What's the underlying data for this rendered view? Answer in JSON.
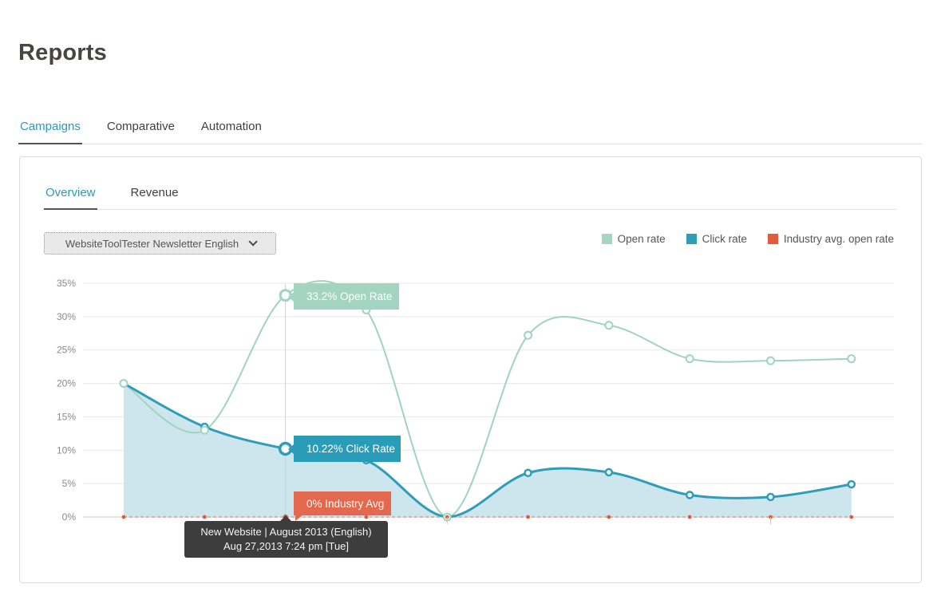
{
  "page": {
    "title": "Reports"
  },
  "top_tabs": {
    "items": [
      {
        "label": "Campaigns",
        "active": true
      },
      {
        "label": "Comparative",
        "active": false
      },
      {
        "label": "Automation",
        "active": false
      }
    ]
  },
  "card": {
    "tabs": {
      "items": [
        {
          "label": "Overview",
          "active": true
        },
        {
          "label": "Revenue",
          "active": false
        }
      ]
    },
    "campaign_selector": {
      "value": "WebsiteToolTester Newsletter English"
    },
    "legend": {
      "items": [
        {
          "label": "Open rate",
          "color": "#a8d5c2"
        },
        {
          "label": "Click rate",
          "color": "#2f9db8"
        },
        {
          "label": "Industry avg. open rate",
          "color": "#e4593c"
        }
      ]
    }
  },
  "tooltips": {
    "open": "33.2% Open Rate",
    "click": "10.22% Click Rate",
    "industry": "0% Industry Avg",
    "campaign_line1": "New Website | August 2013 (English)",
    "campaign_line2": "Aug 27,2013 7:24 pm [Tue]"
  },
  "chart_data": {
    "type": "area",
    "title": "",
    "xlabel": "",
    "ylabel": "",
    "ylim": [
      0,
      35
    ],
    "ytick_step": 5,
    "ytick_suffix": "%",
    "grid": true,
    "legend_position": "top-right",
    "xaxis": {
      "labels_visible": false,
      "points": 10,
      "tick_positions": [
        4,
        8
      ]
    },
    "series": [
      {
        "name": "Open rate",
        "color": "#9fd4be",
        "values": [
          20,
          13,
          33.2,
          31,
          0,
          27.2,
          28.7,
          23.7,
          23.4,
          23.7
        ]
      },
      {
        "name": "Click rate",
        "color": "#2f9db8",
        "fill": "#cde6ee",
        "values": [
          20,
          13.5,
          10.22,
          8.5,
          0,
          6.6,
          6.7,
          3.3,
          3,
          4.9
        ]
      },
      {
        "name": "Industry avg. open rate",
        "color": "#e4593c",
        "values": [
          0,
          0,
          0,
          0,
          0,
          0,
          0,
          0,
          0,
          0
        ]
      }
    ],
    "hovered_index": 2,
    "hovered_point": {
      "open_rate": "33.2%",
      "click_rate": "10.22%",
      "industry_avg": "0%",
      "campaign": "New Website | August 2013 (English)",
      "datetime": "Aug 27,2013 7:24 pm [Tue]"
    }
  }
}
